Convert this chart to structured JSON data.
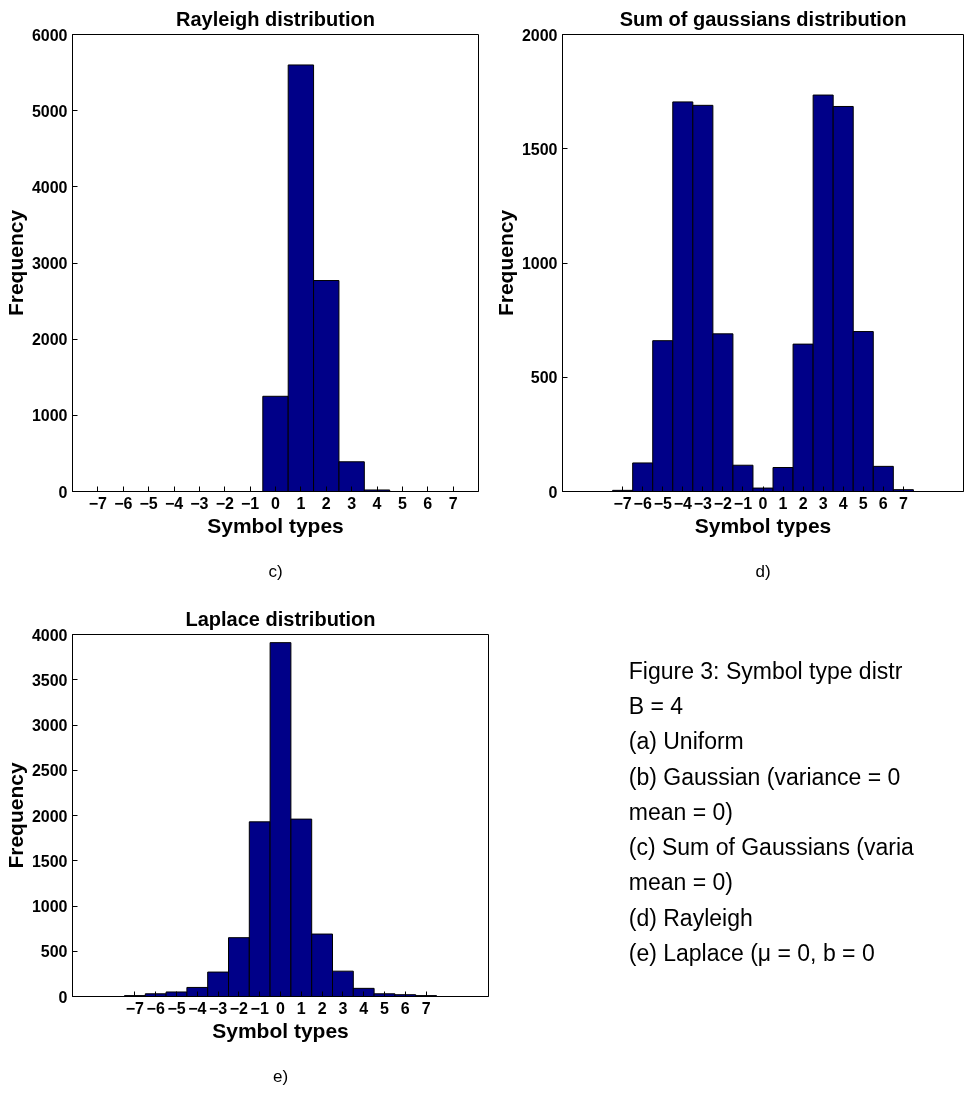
{
  "chart_data": [
    {
      "type": "histogram",
      "title": "Rayleigh distribution",
      "xlabel": "Symbol types",
      "ylabel": "Frequency",
      "color": "#000088",
      "bins": [
        -7.5,
        -6.5,
        -5.5,
        -4.5,
        -3.5,
        -2.5,
        -1.5,
        -0.5,
        0.5,
        1.5,
        2.5,
        3.5,
        4.5,
        5.5,
        6.5,
        7.5
      ],
      "values": [
        0,
        0,
        0,
        0,
        0,
        0,
        0,
        1250,
        5600,
        2770,
        390,
        20,
        0,
        0,
        0
      ],
      "xlim": [
        -8,
        8
      ],
      "xticks": [
        -7,
        -6,
        -5,
        -4,
        -3,
        -2,
        -1,
        0,
        1,
        2,
        3,
        4,
        5,
        6,
        7
      ],
      "ylim": [
        0,
        6000
      ],
      "yticks": [
        0,
        1000,
        2000,
        3000,
        4000,
        5000,
        6000
      ],
      "annotations": [
        "c)"
      ]
    },
    {
      "type": "histogram",
      "title": "Sum of gaussians distribution",
      "xlabel": "Symbol types",
      "ylabel": "Frequency",
      "color": "#000088",
      "bins": [
        -7.5,
        -6.5,
        -5.5,
        -4.5,
        -3.5,
        -2.5,
        -1.5,
        -0.5,
        0.5,
        1.5,
        2.5,
        3.5,
        4.5,
        5.5,
        6.5,
        7.5
      ],
      "values": [
        5,
        125,
        660,
        1705,
        1690,
        690,
        115,
        15,
        105,
        645,
        1735,
        1685,
        700,
        110,
        8
      ],
      "xlim": [
        -10,
        10
      ],
      "xticks": [
        -7,
        -6,
        -5,
        -4,
        -3,
        -2,
        -1,
        0,
        1,
        2,
        3,
        4,
        5,
        6,
        7
      ],
      "ylim": [
        0,
        2000
      ],
      "yticks": [
        0,
        500,
        1000,
        1500,
        2000
      ],
      "annotations": [
        "d)"
      ]
    },
    {
      "type": "histogram",
      "title": "Laplace distribution",
      "xlabel": "Symbol types",
      "ylabel": "Frequency",
      "color": "#000088",
      "bins": [
        -7.5,
        -6.5,
        -5.5,
        -4.5,
        -3.5,
        -2.5,
        -1.5,
        -0.5,
        0.5,
        1.5,
        2.5,
        3.5,
        4.5,
        5.5,
        6.5,
        7.5
      ],
      "values": [
        10,
        30,
        50,
        100,
        270,
        650,
        1930,
        3910,
        1960,
        690,
        280,
        90,
        30,
        20,
        10
      ],
      "xlim": [
        -10,
        10
      ],
      "xticks": [
        -7,
        -6,
        -5,
        -4,
        -3,
        -2,
        -1,
        0,
        1,
        2,
        3,
        4,
        5,
        6,
        7
      ],
      "ylim": [
        0,
        4000
      ],
      "yticks": [
        0,
        500,
        1000,
        1500,
        2000,
        2500,
        3000,
        3500,
        4000
      ],
      "annotations": [
        "e)"
      ]
    },
    {
      "type": "other",
      "annotations": [
        "Figure 3: Symbol type distr",
        "B = 4",
        "(a) Uniform",
        "(b) Gaussian (variance = 0",
        "mean = 0)",
        "(c) Sum of Gaussians (varia",
        "mean = 0)",
        "(d) Rayleigh",
        "(e) Laplace (μ = 0, b = 0"
      ]
    }
  ]
}
